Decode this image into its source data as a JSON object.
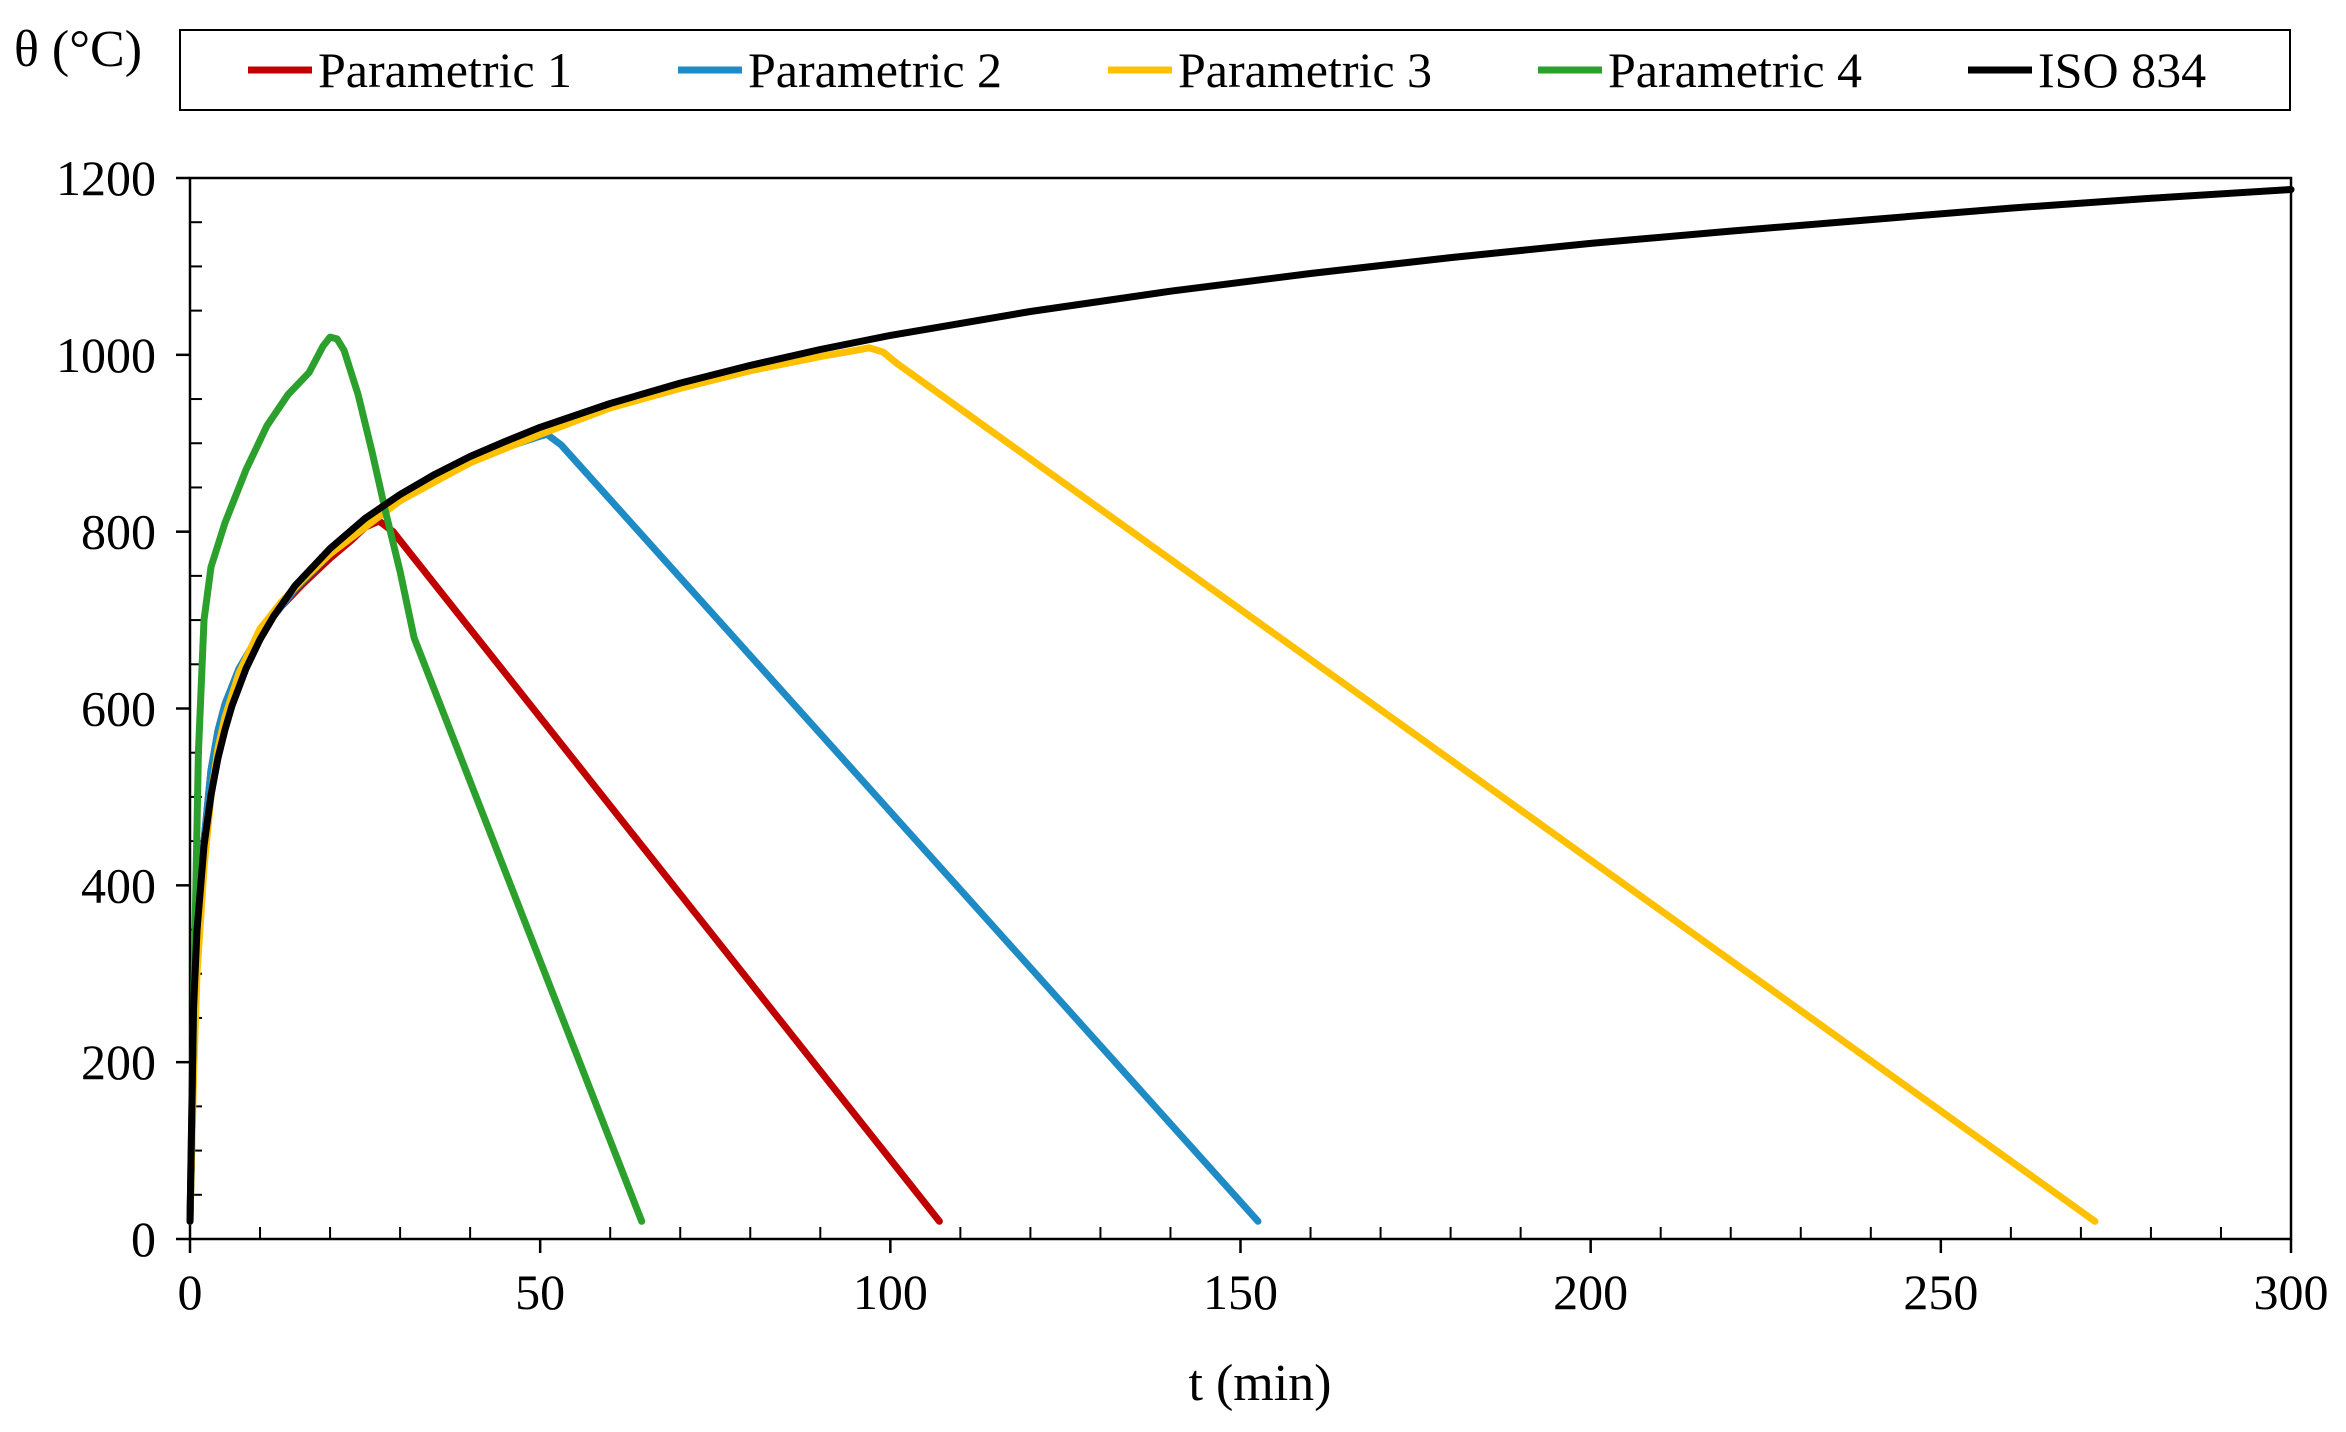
{
  "chart_data": {
    "type": "line",
    "title": "",
    "xlabel": "t (min)",
    "ylabel": "θ (°C)",
    "xlim": [
      0,
      300
    ],
    "ylim": [
      0,
      1200
    ],
    "x_ticks": [
      0,
      50,
      100,
      150,
      200,
      250,
      300
    ],
    "y_ticks": [
      0,
      200,
      400,
      600,
      800,
      1000,
      1200
    ],
    "x_minor_step": 10,
    "y_minor_step": 50,
    "grid": false,
    "legend_position": "top",
    "series": [
      {
        "name": "Parametric 1",
        "color": "#c00000",
        "points": [
          [
            0,
            20
          ],
          [
            0.5,
            200
          ],
          [
            1,
            330
          ],
          [
            2,
            450
          ],
          [
            3,
            530
          ],
          [
            4,
            575
          ],
          [
            5,
            605
          ],
          [
            7,
            645
          ],
          [
            10,
            685
          ],
          [
            13,
            715
          ],
          [
            16,
            740
          ],
          [
            20,
            770
          ],
          [
            23,
            790
          ],
          [
            25,
            805
          ],
          [
            27,
            812
          ],
          [
            29,
            800
          ],
          [
            31,
            780
          ],
          [
            107,
            20
          ]
        ]
      },
      {
        "name": "Parametric 2",
        "color": "#1f8bc5",
        "points": [
          [
            0,
            20
          ],
          [
            0.5,
            200
          ],
          [
            1,
            330
          ],
          [
            2,
            450
          ],
          [
            3,
            530
          ],
          [
            4,
            575
          ],
          [
            5,
            605
          ],
          [
            7,
            645
          ],
          [
            10,
            685
          ],
          [
            15,
            735
          ],
          [
            20,
            775
          ],
          [
            25,
            808
          ],
          [
            30,
            835
          ],
          [
            35,
            858
          ],
          [
            40,
            878
          ],
          [
            45,
            895
          ],
          [
            50,
            908
          ],
          [
            51,
            910
          ],
          [
            53,
            898
          ],
          [
            152.5,
            20
          ]
        ]
      },
      {
        "name": "Parametric 3",
        "color": "#ffc000",
        "points": [
          [
            0,
            20
          ],
          [
            0.5,
            180
          ],
          [
            1,
            300
          ],
          [
            2,
            420
          ],
          [
            3,
            500
          ],
          [
            4,
            555
          ],
          [
            5,
            590
          ],
          [
            7,
            640
          ],
          [
            10,
            690
          ],
          [
            13,
            720
          ],
          [
            16,
            745
          ],
          [
            20,
            775
          ],
          [
            25,
            805
          ],
          [
            30,
            835
          ],
          [
            40,
            878
          ],
          [
            50,
            910
          ],
          [
            60,
            940
          ],
          [
            70,
            962
          ],
          [
            80,
            982
          ],
          [
            90,
            998
          ],
          [
            95,
            1005
          ],
          [
            97,
            1008
          ],
          [
            99,
            1003
          ],
          [
            101,
            990
          ],
          [
            272,
            20
          ]
        ]
      },
      {
        "name": "Parametric 4",
        "color": "#2ca02c",
        "points": [
          [
            0,
            20
          ],
          [
            0.6,
            300
          ],
          [
            1.2,
            550
          ],
          [
            2,
            700
          ],
          [
            3,
            760
          ],
          [
            5,
            810
          ],
          [
            8,
            870
          ],
          [
            11,
            920
          ],
          [
            14,
            955
          ],
          [
            17,
            980
          ],
          [
            19,
            1010
          ],
          [
            20,
            1020
          ],
          [
            21,
            1018
          ],
          [
            22,
            1005
          ],
          [
            24,
            955
          ],
          [
            26,
            890
          ],
          [
            28,
            820
          ],
          [
            30,
            755
          ],
          [
            32,
            680
          ],
          [
            64.5,
            20
          ]
        ]
      },
      {
        "name": "ISO 834",
        "color": "#000000",
        "points": [
          [
            0,
            20
          ],
          [
            0.5,
            261
          ],
          [
            1,
            349
          ],
          [
            2,
            445
          ],
          [
            3,
            502
          ],
          [
            4,
            544
          ],
          [
            5,
            576
          ],
          [
            6,
            603
          ],
          [
            8,
            645
          ],
          [
            10,
            678
          ],
          [
            12,
            705
          ],
          [
            15,
            739
          ],
          [
            20,
            781
          ],
          [
            25,
            815
          ],
          [
            30,
            842
          ],
          [
            35,
            865
          ],
          [
            40,
            885
          ],
          [
            45,
            902
          ],
          [
            50,
            918
          ],
          [
            60,
            945
          ],
          [
            70,
            968
          ],
          [
            80,
            988
          ],
          [
            90,
            1006
          ],
          [
            100,
            1022
          ],
          [
            120,
            1049
          ],
          [
            140,
            1072
          ],
          [
            160,
            1092
          ],
          [
            180,
            1110
          ],
          [
            200,
            1126
          ],
          [
            220,
            1140
          ],
          [
            240,
            1153
          ],
          [
            260,
            1166
          ],
          [
            280,
            1177
          ],
          [
            300,
            1187
          ]
        ]
      }
    ]
  }
}
